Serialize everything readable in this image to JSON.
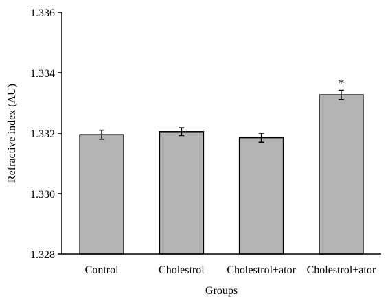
{
  "chart_data": {
    "type": "bar",
    "title": "",
    "xlabel": "Groups",
    "ylabel": "Refractive index (AU)",
    "ylim": [
      1.328,
      1.336
    ],
    "yticks": [
      1.328,
      1.33,
      1.332,
      1.334,
      1.336
    ],
    "ytick_labels": [
      "1.328",
      "1.330",
      "1.332",
      "1.334",
      "1.336"
    ],
    "categories": [
      "Control",
      "Cholestrol",
      "Cholestrol+ator",
      "Cholestrol+ator"
    ],
    "values": [
      1.33195,
      1.33205,
      1.33185,
      1.33327
    ],
    "errors": [
      0.00015,
      0.00013,
      0.00015,
      0.00015
    ],
    "annotations": [
      "",
      "",
      "",
      "*"
    ],
    "bar_color": "#b3b3b3",
    "edge_color": "#000000",
    "grid": false,
    "legend": "none"
  }
}
